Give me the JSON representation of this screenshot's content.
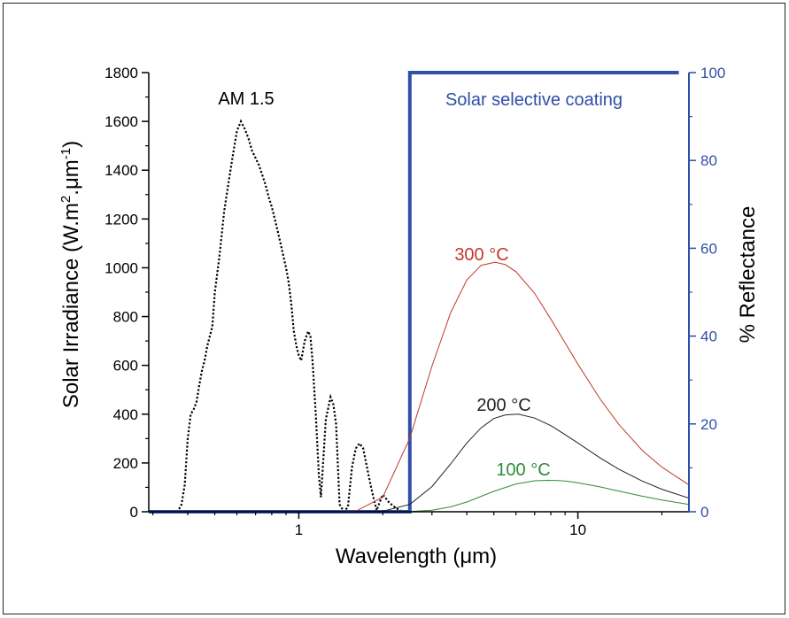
{
  "chart_data": {
    "type": "line",
    "xlabel": "Wavelength (μm)",
    "ylabel_left": "Solar Irradiance (W.m-2.μm-1)",
    "ylabel_left_parts": {
      "main": "Solar Irradiance (W.m",
      "sup1": "2",
      "mid": ".μm",
      "sup2": "-1",
      "end": ")"
    },
    "ylabel_right": "% Reflectance",
    "x_scale": "log",
    "xlim": [
      0.29,
      25
    ],
    "x_ticks": [
      1,
      10
    ],
    "x_tick_labels": [
      "1",
      "10"
    ],
    "ylim_left": [
      0,
      1800
    ],
    "y_ticks_left": [
      0,
      200,
      400,
      600,
      800,
      1000,
      1200,
      1400,
      1600,
      1800
    ],
    "ylim_right": [
      0,
      100
    ],
    "y_ticks_right": [
      0,
      20,
      40,
      60,
      80,
      100
    ],
    "grid": false,
    "annotations": {
      "am15": "AM 1.5",
      "coating": "Solar selective coating",
      "t300": "300 °C",
      "t200": "200 °C",
      "t100": "100 °C"
    },
    "colors": {
      "am15": "#000000",
      "coating": "#2f4fa8",
      "right_axis": "#2f4fa8",
      "t300": "#c0392b",
      "t200": "#222222",
      "t100": "#2e8b3a"
    },
    "series": [
      {
        "key": "am15",
        "axis": "left",
        "style": "dotted",
        "x": [
          0.3,
          0.31,
          0.32,
          0.33,
          0.34,
          0.35,
          0.36,
          0.37,
          0.38,
          0.39,
          0.4,
          0.41,
          0.42,
          0.43,
          0.44,
          0.45,
          0.46,
          0.47,
          0.48,
          0.49,
          0.5,
          0.52,
          0.54,
          0.56,
          0.58,
          0.6,
          0.62,
          0.64,
          0.66,
          0.68,
          0.7,
          0.72,
          0.74,
          0.76,
          0.78,
          0.8,
          0.82,
          0.84,
          0.86,
          0.88,
          0.9,
          0.92,
          0.94,
          0.96,
          0.98,
          1.0,
          1.02,
          1.05,
          1.08,
          1.1,
          1.12,
          1.15,
          1.18,
          1.2,
          1.25,
          1.3,
          1.33,
          1.36,
          1.4,
          1.45,
          1.5,
          1.55,
          1.6,
          1.65,
          1.7,
          1.75,
          1.8,
          1.85,
          1.9,
          1.95,
          2.0,
          2.05,
          2.1,
          2.2,
          2.3,
          2.4,
          2.5
        ],
        "values": [
          0,
          0,
          0,
          0,
          0,
          0,
          0,
          5,
          30,
          110,
          300,
          400,
          420,
          450,
          520,
          580,
          620,
          680,
          720,
          760,
          900,
          1050,
          1230,
          1350,
          1460,
          1560,
          1600,
          1570,
          1530,
          1480,
          1450,
          1420,
          1380,
          1340,
          1290,
          1250,
          1200,
          1150,
          1100,
          1050,
          1000,
          940,
          850,
          740,
          680,
          640,
          620,
          700,
          740,
          720,
          620,
          400,
          150,
          60,
          380,
          470,
          440,
          360,
          30,
          0,
          20,
          180,
          260,
          280,
          260,
          190,
          120,
          60,
          5,
          40,
          70,
          55,
          40,
          20,
          5,
          0,
          0
        ]
      },
      {
        "key": "coating",
        "axis": "right",
        "style": "solid",
        "x": [
          0.29,
          2.5,
          2.5,
          23
        ],
        "values": [
          0,
          0,
          100,
          100
        ]
      },
      {
        "key": "t300",
        "axis": "left",
        "style": "solid",
        "x": [
          0.29,
          1.0,
          1.3,
          1.6,
          2.0,
          2.5,
          3.0,
          3.5,
          4.0,
          4.5,
          5.05,
          5.5,
          6.0,
          7.0,
          8.0,
          9.0,
          10,
          12,
          14,
          17,
          20,
          25
        ],
        "values": [
          0,
          0,
          0,
          2,
          60,
          302,
          597,
          816,
          950,
          1010,
          1023,
          1013,
          984,
          895,
          790,
          692,
          605,
          463,
          359,
          252,
          183,
          110
        ]
      },
      {
        "key": "t200",
        "axis": "left",
        "style": "solid",
        "x": [
          0.29,
          1.3,
          1.6,
          2.0,
          2.5,
          3.0,
          3.5,
          4.0,
          4.5,
          5.0,
          5.5,
          6.12,
          7.0,
          8.0,
          9.0,
          10,
          12,
          14,
          17,
          20,
          25
        ],
        "values": [
          0,
          0,
          0,
          2,
          30,
          103,
          196,
          282,
          344,
          382,
          397,
          400,
          384,
          353,
          316,
          282,
          221,
          175,
          126,
          92,
          56
        ]
      },
      {
        "key": "t100",
        "axis": "left",
        "style": "solid",
        "x": [
          0.29,
          2.0,
          2.5,
          3.0,
          3.5,
          4.0,
          4.5,
          5.0,
          6.0,
          7.0,
          7.77,
          8.5,
          9.0,
          10,
          12,
          14,
          17,
          20,
          25
        ],
        "values": [
          0,
          0,
          1,
          6,
          20,
          40,
          63,
          84,
          114,
          127,
          129,
          128,
          126,
          119,
          102,
          85,
          64,
          48,
          30
        ]
      }
    ]
  }
}
